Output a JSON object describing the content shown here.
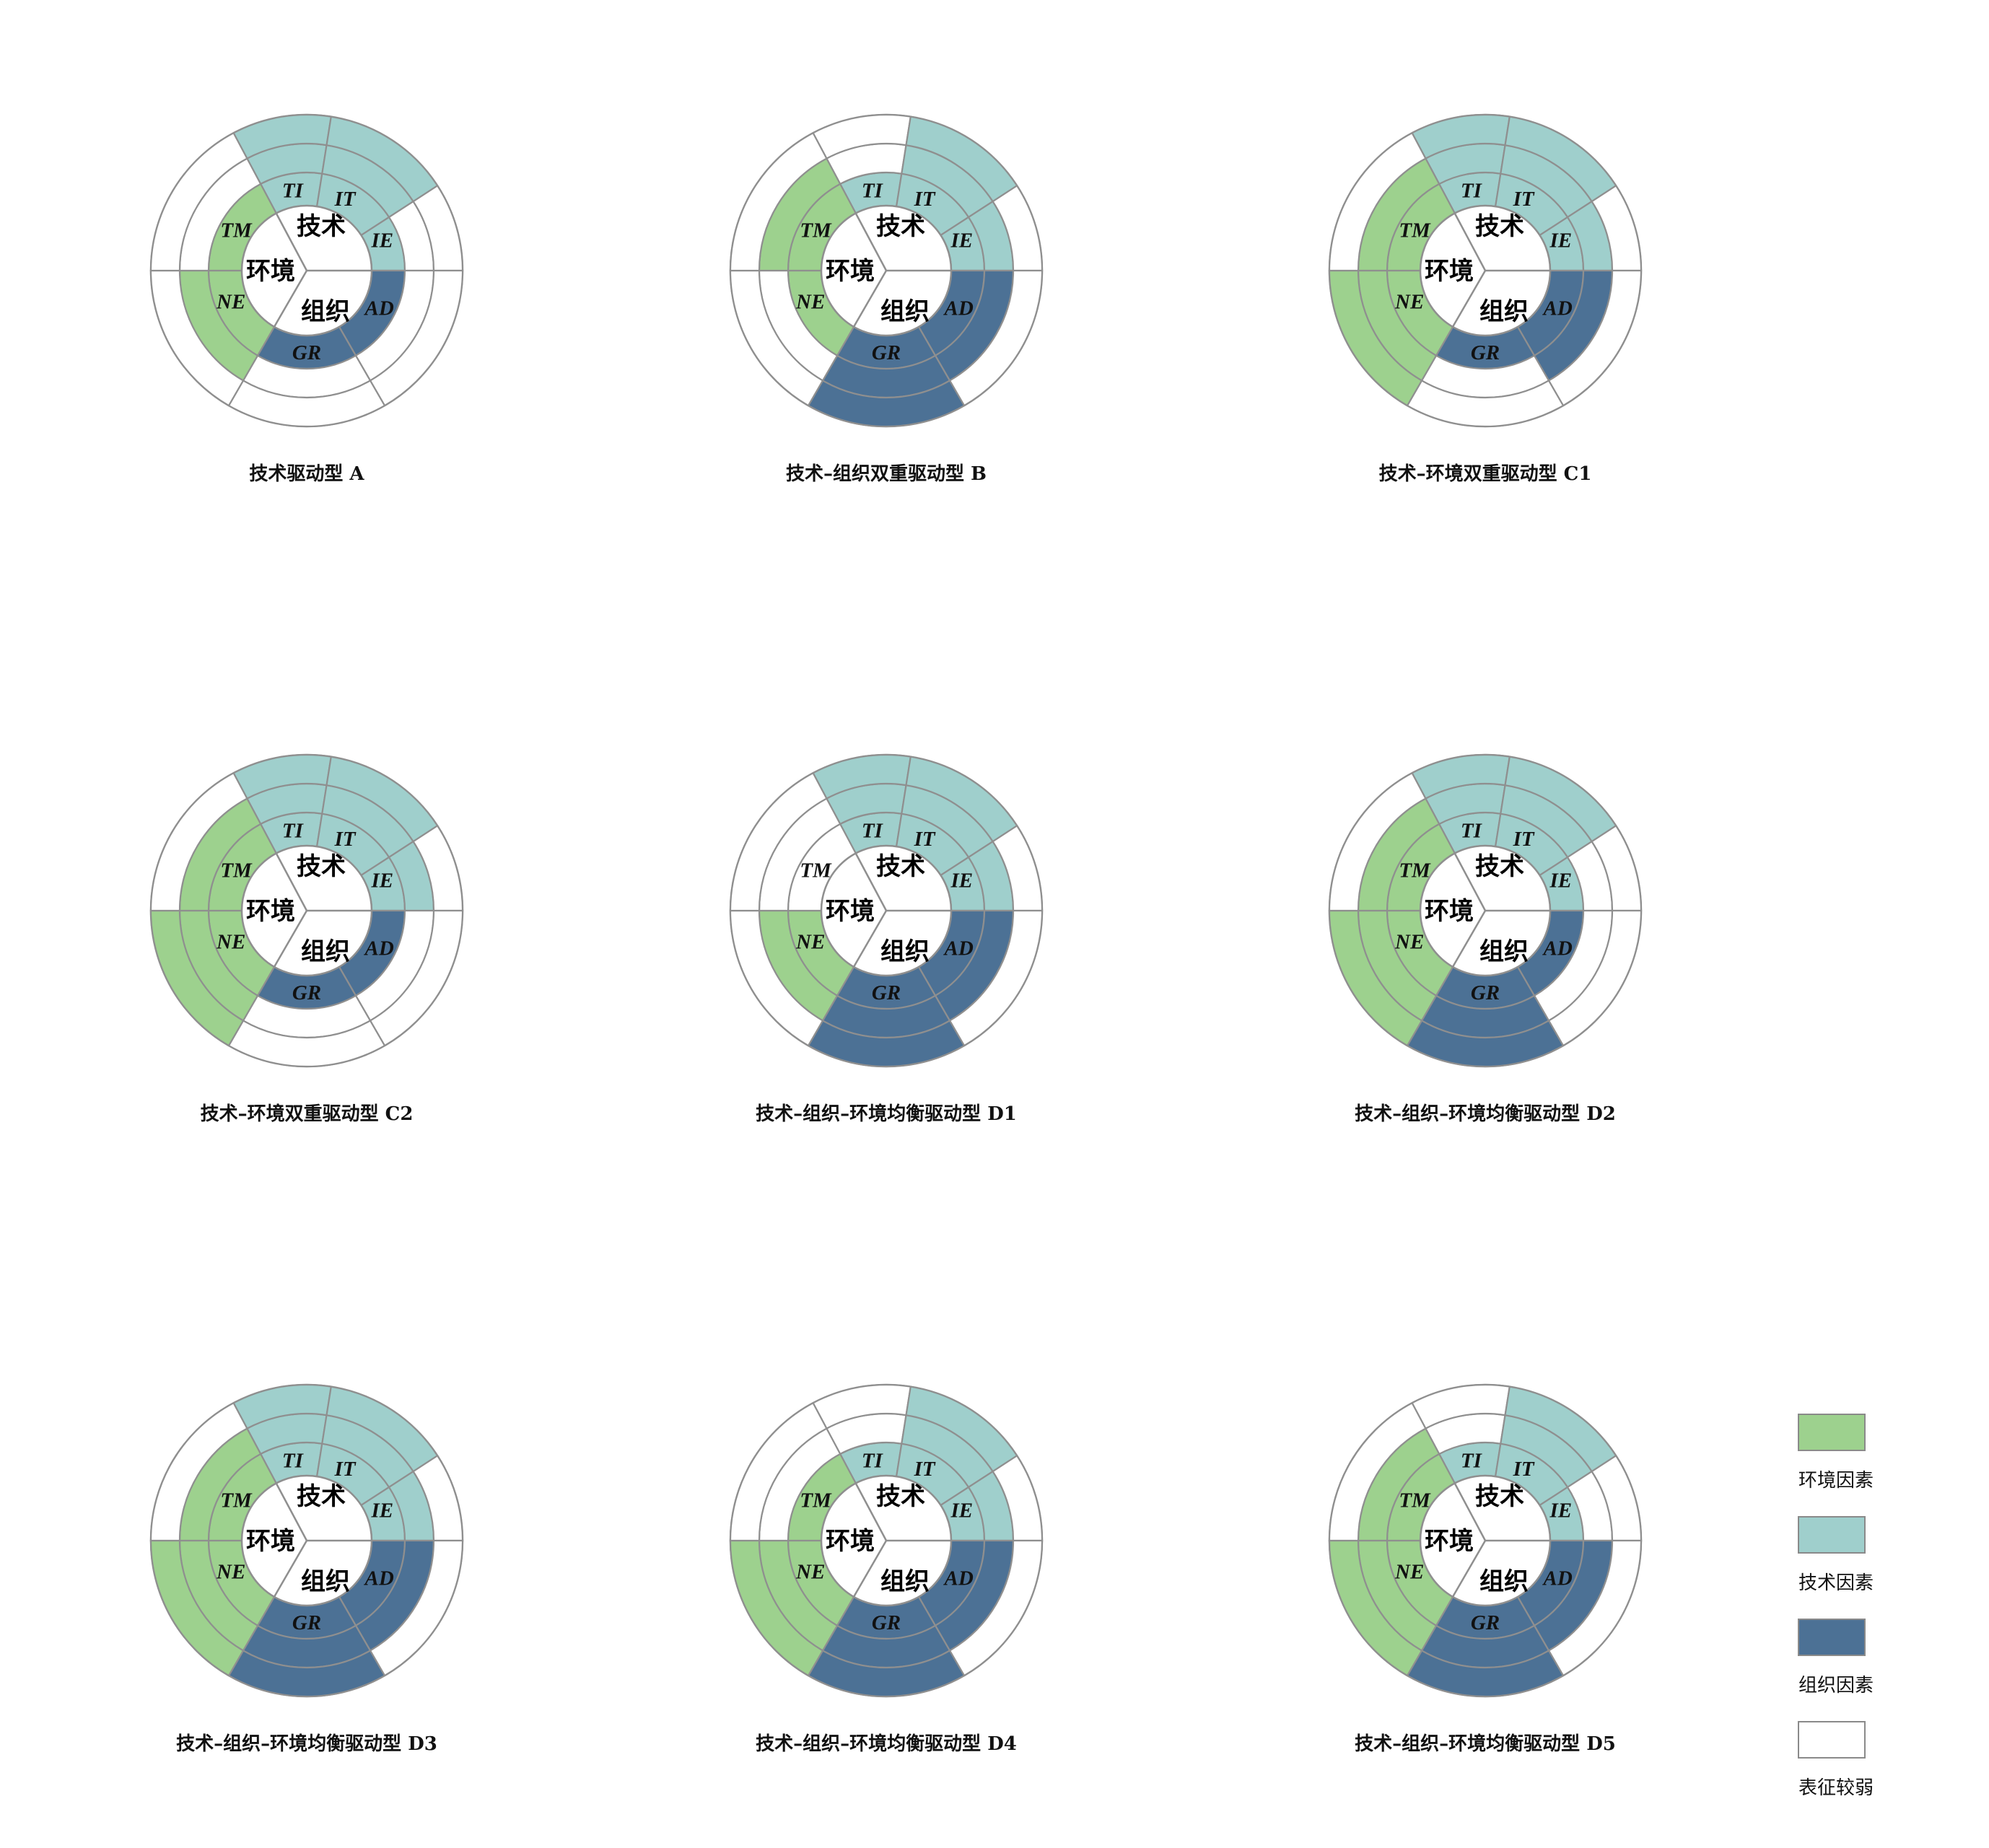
{
  "colors": {
    "environment": "#9dd18e",
    "technology": "#9fcfcc",
    "organization": "#4c7195",
    "weak": "#ffffff",
    "stroke": "#8f8f8f"
  },
  "categories": {
    "technology": "技术",
    "environment": "环境",
    "organization": "组织"
  },
  "factors": [
    {
      "key": "TI",
      "label": "TI",
      "group": "technology"
    },
    {
      "key": "IT",
      "label": "IT",
      "group": "technology"
    },
    {
      "key": "IE",
      "label": "IE",
      "group": "technology"
    },
    {
      "key": "AD",
      "label": "AD",
      "group": "organization"
    },
    {
      "key": "GR",
      "label": "GR",
      "group": "organization"
    },
    {
      "key": "NE",
      "label": "NE",
      "group": "environment"
    },
    {
      "key": "TM",
      "label": "TM",
      "group": "environment"
    }
  ],
  "diagrams": [
    {
      "caption": "技术驱动型  A",
      "levels": {
        "TI": 3,
        "IT": 3,
        "IE": 1,
        "AD": 1,
        "GR": 1,
        "NE": 2,
        "TM": 1
      }
    },
    {
      "caption": "技术–组织双重驱动型  B",
      "levels": {
        "TI": 1,
        "IT": 3,
        "IE": 2,
        "AD": 2,
        "GR": 3,
        "NE": 1,
        "TM": 2
      }
    },
    {
      "caption": "技术–环境双重驱动型  C1",
      "levels": {
        "TI": 3,
        "IT": 3,
        "IE": 2,
        "AD": 2,
        "GR": 1,
        "NE": 3,
        "TM": 2
      }
    },
    {
      "caption": "技术–环境双重驱动型  C2",
      "levels": {
        "TI": 3,
        "IT": 3,
        "IE": 2,
        "AD": 1,
        "GR": 1,
        "NE": 3,
        "TM": 2
      }
    },
    {
      "caption": "技术–组织–环境均衡驱动型  D1",
      "levels": {
        "TI": 3,
        "IT": 3,
        "IE": 2,
        "AD": 2,
        "GR": 3,
        "NE": 2,
        "TM": 0
      }
    },
    {
      "caption": "技术–组织–环境均衡驱动型  D2",
      "levels": {
        "TI": 3,
        "IT": 3,
        "IE": 1,
        "AD": 1,
        "GR": 3,
        "NE": 3,
        "TM": 2
      }
    },
    {
      "caption": "技术–组织–环境均衡驱动型  D3",
      "levels": {
        "TI": 3,
        "IT": 3,
        "IE": 2,
        "AD": 2,
        "GR": 3,
        "NE": 3,
        "TM": 2
      }
    },
    {
      "caption": "技术–组织–环境均衡驱动型  D4",
      "levels": {
        "TI": 1,
        "IT": 3,
        "IE": 2,
        "AD": 2,
        "GR": 3,
        "NE": 3,
        "TM": 1
      }
    },
    {
      "caption": "技术–组织–环境均衡驱动型  D5",
      "levels": {
        "TI": 1,
        "IT": 3,
        "IE": 1,
        "AD": 2,
        "GR": 3,
        "NE": 3,
        "TM": 2
      }
    }
  ],
  "legend": [
    {
      "label": "环境因素",
      "color": "#9dd18e"
    },
    {
      "label": "技术因素",
      "color": "#9fcfcc"
    },
    {
      "label": "组织因素",
      "color": "#4c7195"
    },
    {
      "label": "表征较弱",
      "color": "#ffffff"
    }
  ]
}
